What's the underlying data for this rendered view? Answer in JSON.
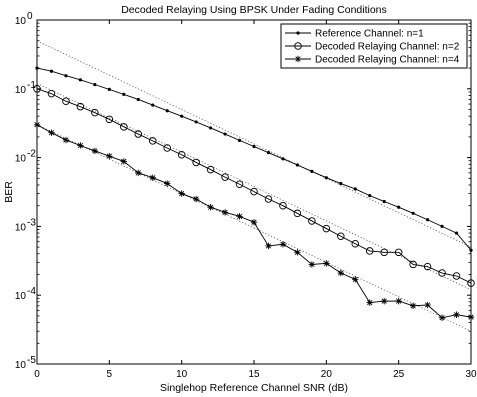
{
  "chart_data": {
    "type": "line",
    "title": "Decoded Relaying Using BPSK Under Fading Conditions",
    "xlabel": "Singlehop Reference Channel SNR (dB)",
    "ylabel": "BER",
    "xlim": [
      0,
      30
    ],
    "ylim_exponent": [
      -5,
      0
    ],
    "yscale": "log",
    "grid": false,
    "legend_position": "top-right",
    "x_ticks": [
      "0",
      "5",
      "10",
      "15",
      "20",
      "25",
      "30"
    ],
    "y_tick_base": "10",
    "y_tick_exponents": [
      "-5",
      "-4",
      "-3",
      "-2",
      "-1",
      "0"
    ],
    "x": [
      0,
      1,
      2,
      3,
      4,
      5,
      6,
      7,
      8,
      9,
      10,
      11,
      12,
      13,
      14,
      15,
      16,
      17,
      18,
      19,
      20,
      21,
      22,
      23,
      24,
      25,
      26,
      27,
      28,
      29,
      30
    ],
    "series": [
      {
        "name": "Reference Channel: n=1",
        "marker": "dot",
        "values": [
          0.2,
          0.18,
          0.155,
          0.135,
          0.115,
          0.098,
          0.083,
          0.07,
          0.058,
          0.048,
          0.04,
          0.033,
          0.027,
          0.022,
          0.0178,
          0.0145,
          0.0118,
          0.0096,
          0.0078,
          0.0063,
          0.0051,
          0.0042,
          0.0035,
          0.0028,
          0.0023,
          0.0019,
          0.00155,
          0.00125,
          0.001,
          0.0008,
          0.00045
        ]
      },
      {
        "name": "Decoded Relaying Channel: n=2",
        "marker": "circle",
        "values": [
          0.1,
          0.085,
          0.066,
          0.055,
          0.045,
          0.036,
          0.028,
          0.022,
          0.0175,
          0.0138,
          0.011,
          0.0085,
          0.0067,
          0.0052,
          0.0041,
          0.0032,
          0.0025,
          0.002,
          0.00155,
          0.0012,
          0.00093,
          0.00072,
          0.00056,
          0.00044,
          0.00042,
          0.00042,
          0.00028,
          0.00026,
          0.00021,
          0.00019,
          0.00015
        ]
      },
      {
        "name": "Decoded Relaying Channel: n=4",
        "marker": "star",
        "values": [
          0.03,
          0.023,
          0.018,
          0.015,
          0.0125,
          0.0105,
          0.0088,
          0.006,
          0.0051,
          0.0042,
          0.003,
          0.0025,
          0.0019,
          0.0016,
          0.0014,
          0.00115,
          0.00052,
          0.00055,
          0.00042,
          0.00028,
          0.00029,
          0.00021,
          0.00017,
          7.8e-05,
          8.2e-05,
          8.2e-05,
          7e-05,
          7.2e-05,
          4.7e-05,
          5.2e-05,
          4.8e-05
        ]
      }
    ],
    "reference_lines": [
      {
        "style": "dotted",
        "y_at_xmin": 0.5,
        "y_at_xmax": 0.0005
      },
      {
        "style": "dotted",
        "y_at_xmin": 0.12,
        "y_at_xmax": 0.00012
      },
      {
        "style": "dotted",
        "y_at_xmin": 0.03,
        "y_at_xmax": 3e-05
      }
    ]
  },
  "colors": {
    "line": "#000000",
    "reference_line": "#555555",
    "background": "#ffffff"
  }
}
